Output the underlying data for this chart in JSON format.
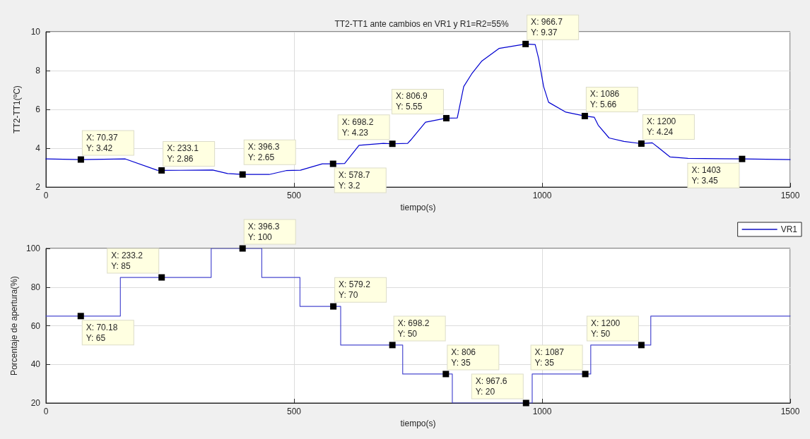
{
  "chart_data": [
    {
      "type": "line",
      "title": "TT2-TT1 ante cambios en VR1 y R1=R2=55%",
      "xlabel": "tiempo(s)",
      "ylabel": "TT2-TT1(ºC)",
      "x": [
        0,
        70.37,
        160,
        224,
        233.1,
        336,
        366,
        396.3,
        450,
        484,
        513,
        557,
        578.7,
        602,
        631,
        680,
        698.2,
        729,
        735,
        765,
        806.9,
        829,
        842,
        858,
        878,
        913,
        966.7,
        986,
        993,
        1003,
        1013,
        1048,
        1086,
        1105,
        1113,
        1135,
        1165,
        1200,
        1222,
        1235,
        1258,
        1294,
        1403,
        1500
      ],
      "series": [
        {
          "color": "#0000d0",
          "values": [
            3.45,
            3.42,
            3.45,
            2.87,
            2.86,
            2.88,
            2.7,
            2.65,
            2.65,
            2.85,
            2.87,
            3.2,
            3.2,
            3.22,
            4.15,
            4.25,
            4.23,
            4.25,
            4.42,
            5.34,
            5.55,
            5.56,
            7.18,
            7.83,
            8.48,
            9.14,
            9.37,
            9.34,
            8.62,
            7.18,
            6.37,
            5.86,
            5.66,
            5.6,
            5.19,
            4.53,
            4.35,
            4.24,
            4.28,
            4.02,
            3.55,
            3.48,
            3.45,
            3.42
          ]
        }
      ],
      "xlim": [
        0,
        1500
      ],
      "xticks": [
        0,
        500,
        1000,
        1500
      ],
      "ylim": [
        2,
        10
      ],
      "yticks": [
        2,
        4,
        6,
        8,
        10
      ],
      "grid": true,
      "marker": "none",
      "legend": false,
      "annotations": [
        {
          "text": "X: 70.37\nY: 3.42",
          "x": 70.37,
          "y": 3.42
        },
        {
          "text": "X: 233.1\nY: 2.86",
          "x": 233.1,
          "y": 2.86
        },
        {
          "text": "X: 396.3\nY: 2.65",
          "x": 396.3,
          "y": 2.65
        },
        {
          "text": "X: 578.7\nY: 3.2",
          "x": 578.7,
          "y": 3.2
        },
        {
          "text": "X: 698.2\nY: 4.23",
          "x": 698.2,
          "y": 4.23
        },
        {
          "text": "X: 806.9\nY: 5.55",
          "x": 806.9,
          "y": 5.55
        },
        {
          "text": "X: 966.7\nY: 9.37",
          "x": 966.7,
          "y": 9.37
        },
        {
          "text": "X: 1086\nY: 5.66",
          "x": 1086,
          "y": 5.66
        },
        {
          "text": "X: 1200\nY: 4.24",
          "x": 1200,
          "y": 4.24
        },
        {
          "text": "X: 1403\nY: 3.45",
          "x": 1403,
          "y": 3.45
        }
      ]
    },
    {
      "type": "step",
      "xlabel": "tiempo(s)",
      "ylabel": "Porcentaje de apertura(%)",
      "x": [
        0,
        150,
        333,
        435,
        512,
        594,
        719,
        819,
        980,
        1098,
        1219,
        1500
      ],
      "series": [
        {
          "name": "VR1",
          "color": "#4a4ad0",
          "values": [
            65,
            85,
            100,
            85,
            70,
            50,
            35,
            20,
            35,
            50,
            65,
            65
          ]
        }
      ],
      "xlim": [
        0,
        1500
      ],
      "xticks": [
        0,
        500,
        1000,
        1500
      ],
      "ylim": [
        20,
        100
      ],
      "yticks": [
        20,
        40,
        60,
        80,
        100
      ],
      "grid": true,
      "marker": "none",
      "legend": "top right",
      "annotations": [
        {
          "text": "X: 70.18\nY: 65",
          "x": 70.18,
          "y": 65
        },
        {
          "text": "X: 233.2\nY: 85",
          "x": 233.2,
          "y": 85
        },
        {
          "text": "X: 396.3\nY: 100",
          "x": 396.3,
          "y": 100
        },
        {
          "text": "X: 579.2\nY: 70",
          "x": 579.2,
          "y": 70
        },
        {
          "text": "X: 698.2\nY: 50",
          "x": 698.2,
          "y": 50
        },
        {
          "text": "X: 806\nY: 35",
          "x": 806,
          "y": 35
        },
        {
          "text": "X: 967.6\nY: 20",
          "x": 967.6,
          "y": 20
        },
        {
          "text": "X: 1087\nY: 35",
          "x": 1087,
          "y": 35
        },
        {
          "text": "X: 1200\nY: 50",
          "x": 1200,
          "y": 50
        }
      ]
    }
  ]
}
